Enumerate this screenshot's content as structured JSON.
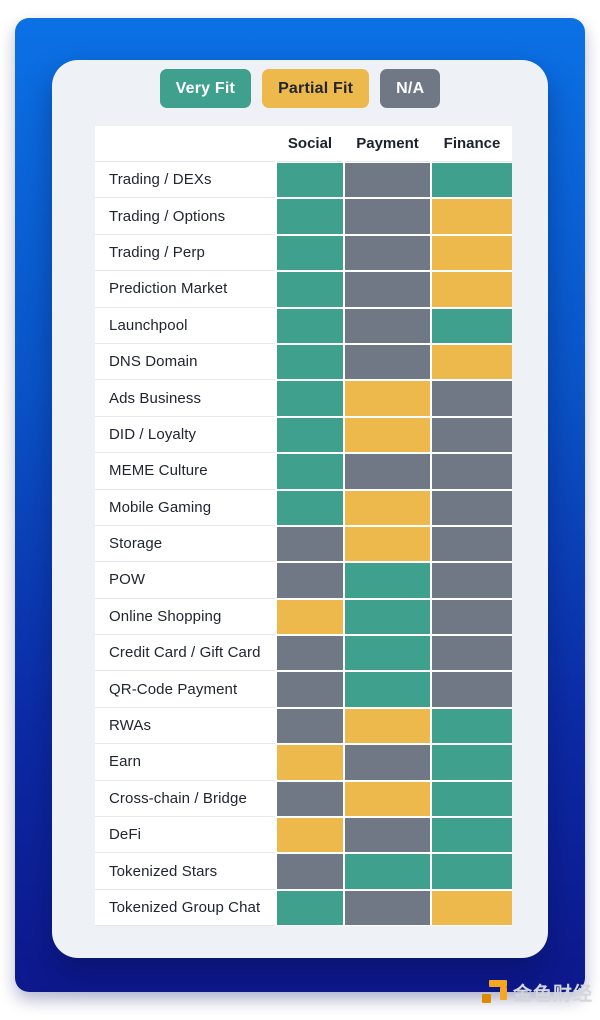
{
  "legend": [
    {
      "label": "Very Fit",
      "key": "very",
      "color": "#3EA08D",
      "text_color": "#FFFFFF"
    },
    {
      "label": "Partial Fit",
      "key": "partial",
      "color": "#EDB94C",
      "text_color": "#23262E"
    },
    {
      "label": "N/A",
      "key": "na",
      "color": "#6F7884",
      "text_color": "#FFFFFF"
    }
  ],
  "chart_data": {
    "type": "heatmap",
    "columns": [
      "Social",
      "Payment",
      "Finance"
    ],
    "value_legend": {
      "very": "Very Fit",
      "partial": "Partial Fit",
      "na": "N/A"
    },
    "colors": {
      "very": "#3EA08D",
      "partial": "#EDB94C",
      "na": "#6F7884"
    },
    "rows": [
      {
        "label": "Trading / DEXs",
        "values": [
          "very",
          "na",
          "very"
        ]
      },
      {
        "label": "Trading / Options",
        "values": [
          "very",
          "na",
          "partial"
        ]
      },
      {
        "label": "Trading / Perp",
        "values": [
          "very",
          "na",
          "partial"
        ]
      },
      {
        "label": "Prediction Market",
        "values": [
          "very",
          "na",
          "partial"
        ]
      },
      {
        "label": "Launchpool",
        "values": [
          "very",
          "na",
          "very"
        ]
      },
      {
        "label": "DNS Domain",
        "values": [
          "very",
          "na",
          "partial"
        ]
      },
      {
        "label": "Ads Business",
        "values": [
          "very",
          "partial",
          "na"
        ]
      },
      {
        "label": "DID / Loyalty",
        "values": [
          "very",
          "partial",
          "na"
        ]
      },
      {
        "label": "MEME Culture",
        "values": [
          "very",
          "na",
          "na"
        ]
      },
      {
        "label": "Mobile Gaming",
        "values": [
          "very",
          "partial",
          "na"
        ]
      },
      {
        "label": "Storage",
        "values": [
          "na",
          "partial",
          "na"
        ]
      },
      {
        "label": "POW",
        "values": [
          "na",
          "very",
          "na"
        ]
      },
      {
        "label": "Online Shopping",
        "values": [
          "partial",
          "very",
          "na"
        ]
      },
      {
        "label": "Credit Card / Gift Card",
        "values": [
          "na",
          "very",
          "na"
        ]
      },
      {
        "label": "QR-Code Payment",
        "values": [
          "na",
          "very",
          "na"
        ]
      },
      {
        "label": "RWAs",
        "values": [
          "na",
          "partial",
          "very"
        ]
      },
      {
        "label": "Earn",
        "values": [
          "partial",
          "na",
          "very"
        ]
      },
      {
        "label": "Cross-chain / Bridge",
        "values": [
          "na",
          "partial",
          "very"
        ]
      },
      {
        "label": "DeFi",
        "values": [
          "partial",
          "na",
          "very"
        ]
      },
      {
        "label": "Tokenized Stars",
        "values": [
          "na",
          "very",
          "very"
        ]
      },
      {
        "label": "Tokenized Group Chat",
        "values": [
          "very",
          "na",
          "partial"
        ]
      }
    ]
  },
  "theme": {
    "panel_gradient_top": "#0B71E5",
    "panel_gradient_bottom": "#0D188C",
    "card_background": "#EEF1F5",
    "watermark_orange": "#F5A623",
    "watermark_orange_dark": "#DE8A00"
  },
  "watermark": {
    "text": "金色财经"
  }
}
